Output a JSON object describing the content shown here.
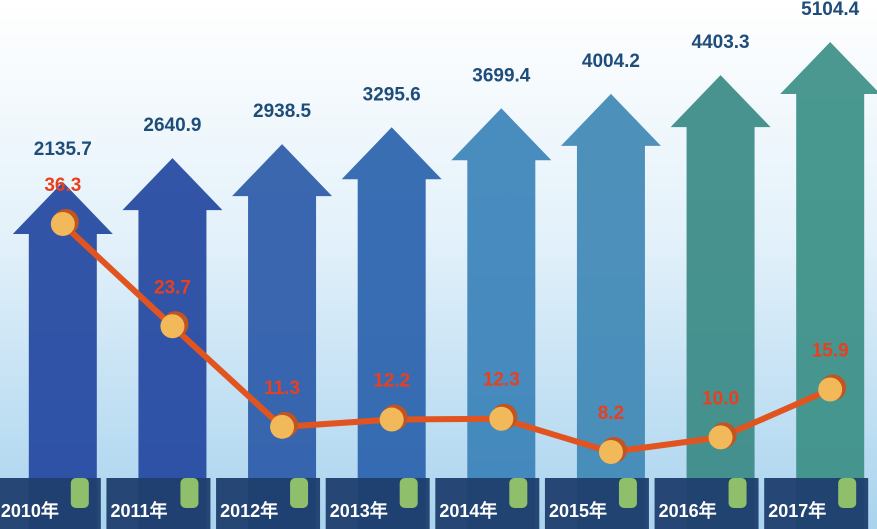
{
  "chart_data": {
    "type": "bar",
    "categories": [
      "2010年",
      "2011年",
      "2012年",
      "2013年",
      "2014年",
      "2015年",
      "2016年",
      "2017年"
    ],
    "series": [
      {
        "type": "bar",
        "colors": [
          "#23479f",
          "#23479f",
          "#2b5aa8",
          "#2a62ad",
          "#3b82b8",
          "#3f88b5",
          "#3a8a86",
          "#3b8f86"
        ],
        "values": [
          2135.7,
          2640.9,
          2938.5,
          3295.6,
          3699.4,
          4004.2,
          4403.3,
          5104.4
        ]
      },
      {
        "type": "line",
        "color": "#e2541f",
        "values": [
          36.3,
          23.7,
          11.3,
          12.2,
          12.3,
          8.2,
          10.0,
          15.9
        ],
        "value_labels": [
          "36.3",
          "23.7",
          "11.3",
          "12.2",
          "12.3",
          "8.2",
          "10.0",
          "15.9"
        ]
      }
    ]
  }
}
